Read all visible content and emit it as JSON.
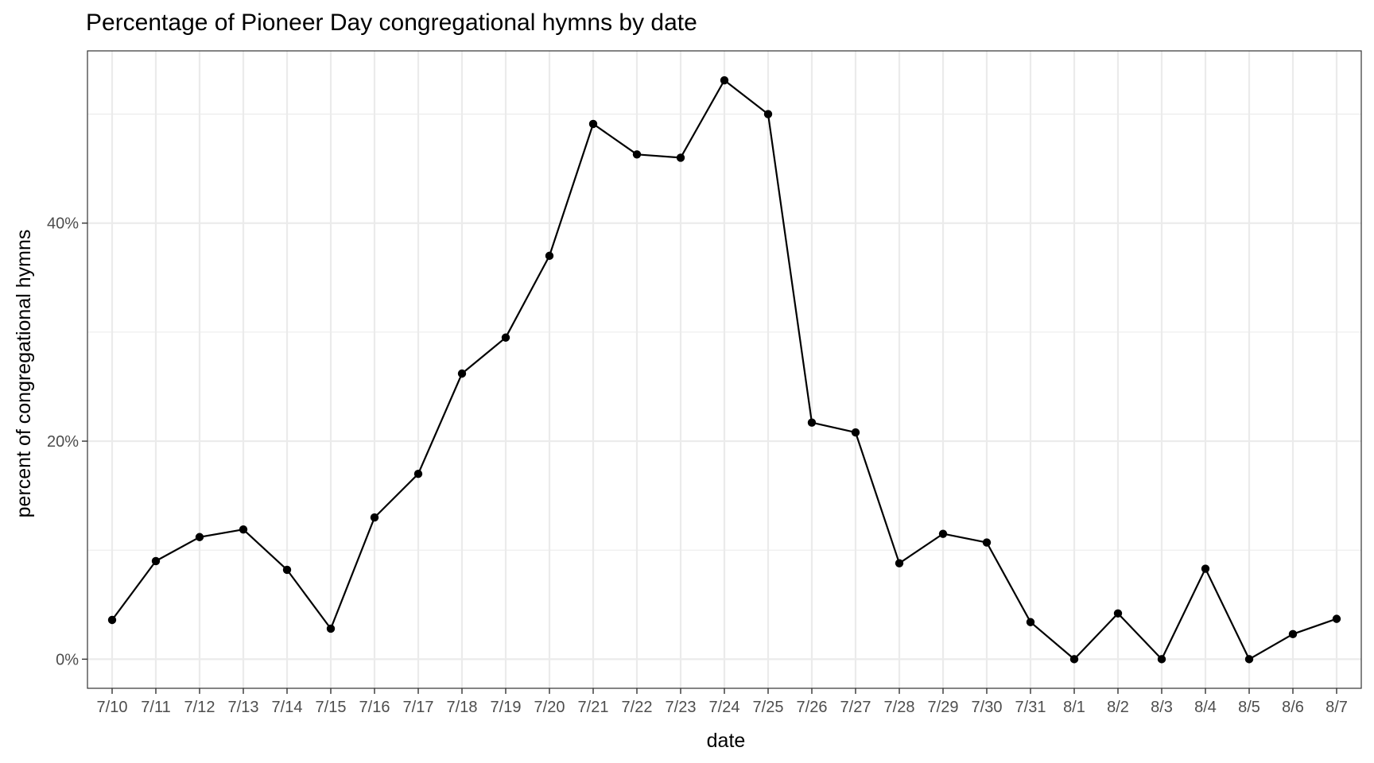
{
  "chart_data": {
    "type": "line",
    "title": "Percentage of Pioneer Day congregational hymns by date",
    "xlabel": "date",
    "ylabel": "percent of congregational hymns",
    "categories": [
      "7/10",
      "7/11",
      "7/12",
      "7/13",
      "7/14",
      "7/15",
      "7/16",
      "7/17",
      "7/18",
      "7/19",
      "7/20",
      "7/21",
      "7/22",
      "7/23",
      "7/24",
      "7/25",
      "7/26",
      "7/27",
      "7/28",
      "7/29",
      "7/30",
      "7/31",
      "8/1",
      "8/2",
      "8/3",
      "8/4",
      "8/5",
      "8/6",
      "8/7"
    ],
    "series": [
      {
        "values": [
          3.6,
          9.0,
          11.2,
          11.9,
          8.2,
          2.8,
          13.0,
          17.0,
          26.2,
          29.5,
          37.0,
          49.1,
          46.3,
          46.0,
          53.1,
          50.0,
          21.7,
          20.8,
          8.8,
          11.5,
          10.7,
          3.4,
          0.0,
          4.2,
          0.0,
          8.3,
          0.0,
          2.3,
          3.7
        ]
      }
    ],
    "ylim": [
      -2.67,
      55.8
    ],
    "yticks": [
      0,
      20,
      40
    ],
    "ytick_labels": [
      "0%",
      "20%",
      "40%"
    ],
    "grid": true,
    "legend": "none",
    "colors": {
      "line": "#000000",
      "point": "#000000",
      "grid": "#ebebeb",
      "panel_border": "#333333"
    }
  }
}
